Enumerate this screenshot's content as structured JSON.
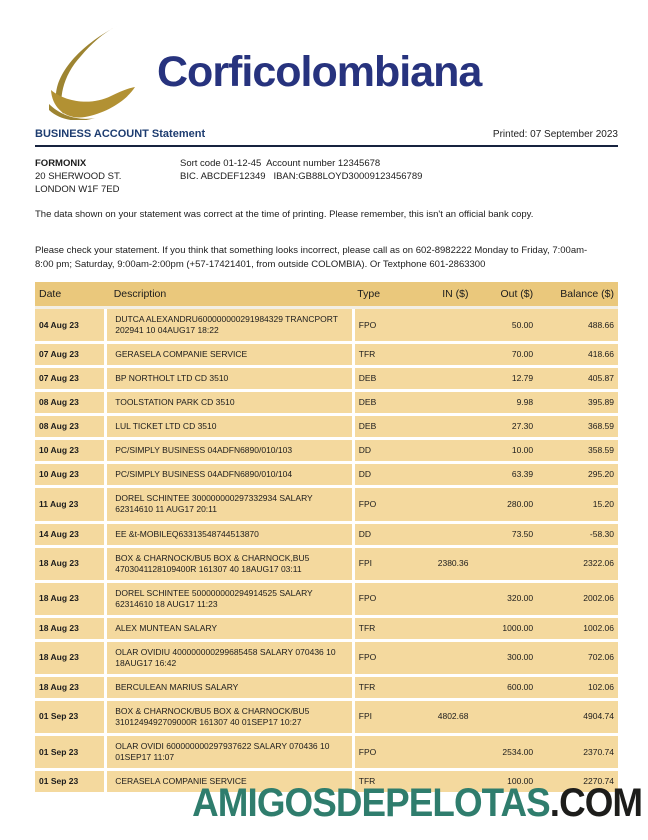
{
  "brand": {
    "wordmark": "Corficolombiana"
  },
  "header": {
    "statement_title": "BUSINESS ACCOUNT Statement",
    "printed": "Printed: 07 September 2023"
  },
  "customer": {
    "name": "FORMONIX",
    "address_line1": "20 SHERWOOD ST.",
    "address_line2": "LONDON W1F 7ED"
  },
  "account": {
    "line1": "Sort code 01-12-45  Account number 12345678",
    "line2": "BIC. ABCDEF12349   IBAN:GB88LOYD30009123456789"
  },
  "notes": {
    "data_note": "The data shown on your statement was correct at the time of printing. Please remember, this isn't an official bank copy.",
    "check_note": "Please check your statement. If you think that something looks incorrect, please call as on 602-8982222 Monday to Friday, 7:00am-8:00 pm; Saturday, 9:00am-2:00pm (+57-17421401, from outside COLOMBIA). Or Textphone 601-2863300"
  },
  "table": {
    "headers": [
      "Date",
      "Description",
      "Type",
      "IN ($)",
      "Out ($)",
      "Balance ($)"
    ],
    "rows": [
      {
        "date": "04 Aug 23",
        "description": "DUTCA ALEXANDRU600000000291984329 TRANCPORT 202941 10 04AUG17 18:22",
        "type": "FPO",
        "in": "",
        "out": "50.00",
        "balance": "488.66"
      },
      {
        "date": "07 Aug 23",
        "description": "GERASELA COMPANIE SERVICE",
        "type": "TFR",
        "in": "",
        "out": "70.00",
        "balance": "418.66"
      },
      {
        "date": "07 Aug 23",
        "description": "BP NORTHOLT LTD CD 3510",
        "type": "DEB",
        "in": "",
        "out": "12.79",
        "balance": "405.87"
      },
      {
        "date": "08 Aug 23",
        "description": "TOOLSTATION PARK CD 3510",
        "type": "DEB",
        "in": "",
        "out": "9.98",
        "balance": "395.89"
      },
      {
        "date": "08 Aug 23",
        "description": "LUL TICKET LTD CD 3510",
        "type": "DEB",
        "in": "",
        "out": "27.30",
        "balance": "368.59"
      },
      {
        "date": "10 Aug 23",
        "description": "PC/SIMPLY BUSINESS 04ADFN6890/010/103",
        "type": "DD",
        "in": "",
        "out": "10.00",
        "balance": "358.59"
      },
      {
        "date": "10 Aug 23",
        "description": "PC/SIMPLY BUSINESS 04ADFN6890/010/104",
        "type": "DD",
        "in": "",
        "out": "63.39",
        "balance": "295.20"
      },
      {
        "date": "11 Aug 23",
        "description": "DOREL SCHINTEE 300000000297332934 SALARY 62314610 11 AUG17 20:11",
        "type": "FPO",
        "in": "",
        "out": "280.00",
        "balance": "15.20"
      },
      {
        "date": "14 Aug 23",
        "description": "EE &t-MOBILEQ63313548744513870",
        "type": "DD",
        "in": "",
        "out": "73.50",
        "balance": "-58.30"
      },
      {
        "date": "18 Aug 23",
        "description": "BOX & CHARNOCK/BU5 BOX & CHARNOCK,BU5 4703041128109400R 161307 40 18AUG17 03:11",
        "type": "FPI",
        "in": "2380.36",
        "out": "",
        "balance": "2322.06"
      },
      {
        "date": "18 Aug 23",
        "description": "DOREL SCHINTEE 500000000294914525 SALARY 62314610 18 AUG17 11:23",
        "type": "FPO",
        "in": "",
        "out": "320.00",
        "balance": "2002.06"
      },
      {
        "date": "18 Aug 23",
        "description": "ALEX MUNTEAN SALARY",
        "type": "TFR",
        "in": "",
        "out": "1000.00",
        "balance": "1002.06"
      },
      {
        "date": "18 Aug 23",
        "description": "OLAR OVIDIU 400000000299685458 SALARY 070436 10 18AUG17 16:42",
        "type": "FPO",
        "in": "",
        "out": "300.00",
        "balance": "702.06"
      },
      {
        "date": "18 Aug 23",
        "description": "BERCULEAN MARIUS SALARY",
        "type": "TFR",
        "in": "",
        "out": "600.00",
        "balance": "102.06"
      },
      {
        "date": "01 Sep 23",
        "description": "BOX & CHARNOCK/BU5 BOX & CHARNOCK/BU5 3101249492709000R 161307 40 01SEP17 10:27",
        "type": "FPI",
        "in": "4802.68",
        "out": "",
        "balance": "4904.74"
      },
      {
        "date": "01 Sep 23",
        "description": "OLAR OVIDI 600000000297937622 SALARY 070436 10 01SEP17 11:07",
        "type": "FPO",
        "in": "",
        "out": "2534.00",
        "balance": "2370.74"
      },
      {
        "date": "01 Sep 23",
        "description": "CERASELA COMPANIE SERVICE",
        "type": "TFR",
        "in": "",
        "out": "100.00",
        "balance": "2270.74"
      }
    ]
  },
  "footer": {
    "site_name": "AMIGOSDEPELOTAS",
    "site_tld": ".COM"
  },
  "colors": {
    "brand_navy": "#27337e",
    "logo_gold": "#b29133",
    "table_header_bg": "#eac87c",
    "table_row_bg": "#f4d99e",
    "footer_teal": "#2f7d6d"
  }
}
